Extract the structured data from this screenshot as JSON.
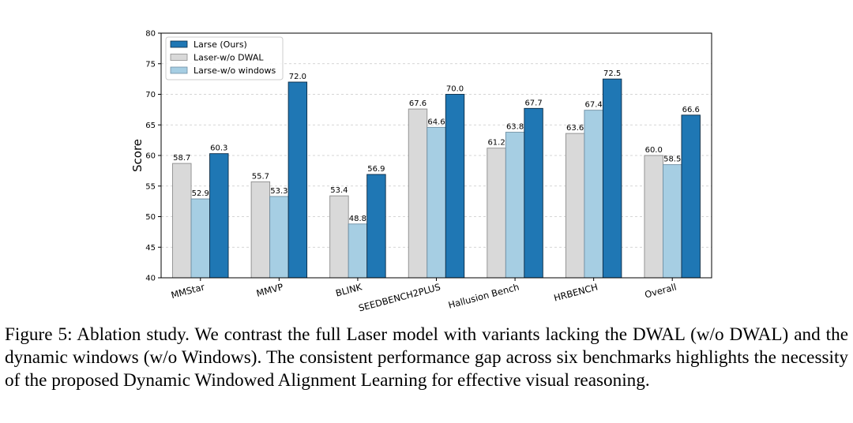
{
  "chart_data": {
    "type": "bar",
    "categories": [
      "MMStar",
      "MMVP",
      "BLINK",
      "SEEDBENCH2PLUS",
      "Hallusion Bench",
      "HRBENCH",
      "Overall"
    ],
    "series": [
      {
        "name": "Laser-w/o DWAL",
        "color": "#d9d9d9",
        "edge": "#8c8c8c",
        "values": [
          58.7,
          55.7,
          53.4,
          67.6,
          61.2,
          63.6,
          60.0
        ]
      },
      {
        "name": "Larse-w/o windows",
        "color": "#a6cee3",
        "edge": "#6f8fa3",
        "values": [
          52.9,
          53.3,
          48.8,
          64.6,
          63.8,
          67.4,
          58.5
        ]
      },
      {
        "name": "Larse (Ours)",
        "color": "#1f77b4",
        "edge": "#0b2b45",
        "values": [
          60.3,
          72.0,
          56.9,
          70.0,
          67.7,
          72.5,
          66.6
        ]
      }
    ],
    "legend_order": [
      2,
      0,
      1
    ],
    "legend_position": "top-left",
    "ylabel": "Score",
    "ylim": [
      40,
      80
    ],
    "yticks": [
      40,
      45,
      50,
      55,
      60,
      65,
      70,
      75,
      80
    ],
    "grid": "y-dashed"
  },
  "caption": "Figure 5: Ablation study. We contrast the full Laser model with variants lacking the DWAL (w/o DWAL) and the dynamic windows (w/o Windows). The consistent performance gap across six benchmarks highlights the necessity of the proposed Dynamic Windowed Alignment Learning for effective visual reasoning."
}
